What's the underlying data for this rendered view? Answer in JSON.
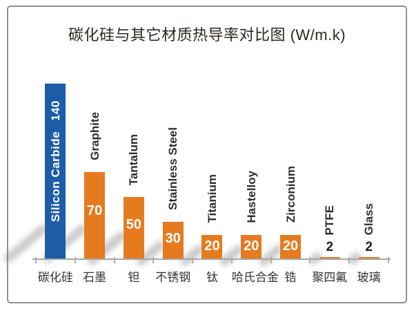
{
  "page": {
    "background": "#ffffff",
    "frame_border_color": "#919191"
  },
  "chart_data": {
    "type": "bar",
    "title": "碳化硅与其它材质热导率对比图 (W/m.k)",
    "value_unit": "W/m.k",
    "ylim": [
      0,
      140
    ],
    "grid": false,
    "legend": "none",
    "axis_visible": "x-only",
    "bar_color": "#E67A1E",
    "highlight_bar_color": "#1D5CA6",
    "axis_color": "#A6A6A6",
    "value_label_color_inside": "#FFFFFF",
    "value_label_color_outside": "#1F1F1F",
    "categories": [
      "碳化硅",
      "石墨",
      "钽",
      "不锈钢",
      "钛",
      "哈氏合金",
      "锆",
      "聚四氟",
      "玻璃"
    ],
    "bars": [
      {
        "category": "碳化硅",
        "label": "Silicon Carbide",
        "value": 140,
        "highlight": true
      },
      {
        "category": "石墨",
        "label": "Graphite",
        "value": 70
      },
      {
        "category": "钽",
        "label": "Tantalum",
        "value": 50
      },
      {
        "category": "不锈钢",
        "label": "Stainless Steel",
        "value": 30
      },
      {
        "category": "钛",
        "label": "Titanium",
        "value": 20
      },
      {
        "category": "哈氏合金",
        "label": "Hastelloy",
        "value": 20
      },
      {
        "category": "锆",
        "label": "Zirconium",
        "value": 20
      },
      {
        "category": "聚四氟",
        "label": "PTFE",
        "value": 2
      },
      {
        "category": "玻璃",
        "label": "Glass",
        "value": 2
      }
    ]
  }
}
